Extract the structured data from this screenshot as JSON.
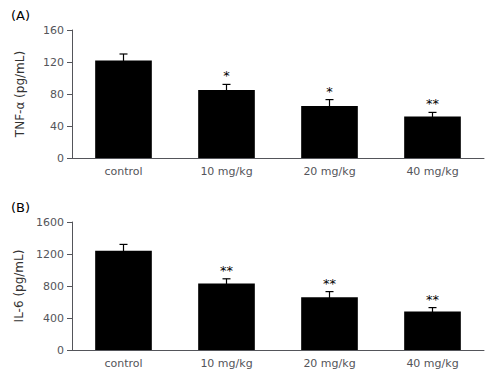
{
  "chart_data": [
    {
      "type": "bar",
      "title": "(A)",
      "ylabel": "TNF-α (pg/mL)",
      "categories": [
        "control",
        "10 mg/kg",
        "20 mg/kg",
        "40 mg/kg"
      ],
      "values": [
        122,
        85,
        65,
        52
      ],
      "errors": [
        8,
        7,
        8,
        5
      ],
      "annotations": [
        {
          "category": "10 mg/kg",
          "text": "*"
        },
        {
          "category": "20 mg/kg",
          "text": "*"
        },
        {
          "category": "40 mg/kg",
          "text": "**"
        }
      ],
      "ylim": [
        0,
        160
      ],
      "yticks": [
        0,
        40,
        80,
        120,
        160
      ],
      "color": "#000000",
      "grid": false
    },
    {
      "type": "bar",
      "title": "(B)",
      "ylabel": "IL-6 (pg/mL)",
      "categories": [
        "control",
        "10 mg/kg",
        "20 mg/kg",
        "40 mg/kg"
      ],
      "values": [
        1240,
        830,
        660,
        480
      ],
      "errors": [
        80,
        60,
        70,
        50
      ],
      "annotations": [
        {
          "category": "10 mg/kg",
          "text": "**"
        },
        {
          "category": "20 mg/kg",
          "text": "**"
        },
        {
          "category": "40 mg/kg",
          "text": "**"
        }
      ],
      "ylim": [
        0,
        1600
      ],
      "yticks": [
        0,
        400,
        800,
        1200,
        1600
      ],
      "color": "#000000",
      "grid": false
    }
  ]
}
